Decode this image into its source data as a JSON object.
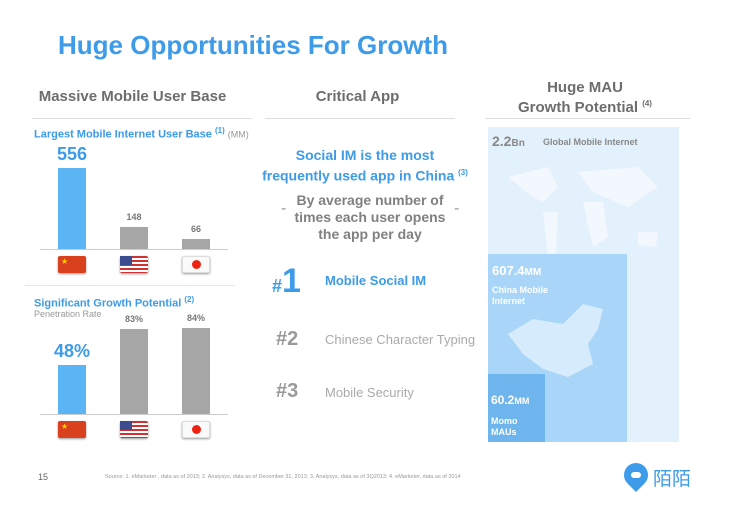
{
  "title": "Huge Opportunities For Growth",
  "columns": {
    "left": "Massive Mobile User Base",
    "middle": "Critical App",
    "right_line1": "Huge MAU",
    "right_line2": "Growth Potential",
    "right_note": "(4)"
  },
  "chart_data": [
    {
      "type": "bar",
      "title": "Largest Mobile Internet User Base",
      "note": "(1)",
      "unit": "(MM)",
      "categories": [
        "China",
        "US",
        "Japan"
      ],
      "values": [
        556,
        148,
        66
      ],
      "labels": [
        "556",
        "148",
        "66"
      ]
    },
    {
      "type": "bar",
      "title": "Significant Growth Potential",
      "note": "(2)",
      "ylabel": "Penetration Rate",
      "categories": [
        "China",
        "US",
        "Japan"
      ],
      "values": [
        48,
        83,
        84
      ],
      "labels": [
        "48%",
        "83%",
        "84%"
      ]
    }
  ],
  "middle": {
    "headline1": "Social IM is the most",
    "headline2": "frequently used app in China",
    "headline_note": "(3)",
    "metric1": "By average number of",
    "metric2": "times each user opens",
    "metric3": "the app per day",
    "dash": "-",
    "ranks": [
      {
        "hash": "#",
        "num": "1",
        "label": "Mobile Social IM"
      },
      {
        "hash": "#",
        "num": "2",
        "label": "Chinese Character Typing"
      },
      {
        "hash": "#",
        "num": "3",
        "label": "Mobile Security"
      }
    ]
  },
  "mau": {
    "global_value": "2.2",
    "global_unit": "Bn",
    "global_label": "Global Mobile Internet",
    "china_value": "607.4",
    "china_unit": "MM",
    "china_label1": "China Mobile",
    "china_label2": "Internet",
    "momo_value": "60.2",
    "momo_unit": "MM",
    "momo_label1": "Momo",
    "momo_label2": "MAUs"
  },
  "footer": {
    "page": "15",
    "source": "Source: 1. eMarketer , data as of 2013; 2. Analysys, data as of December 31, 2013; 3. Analysys, data as of 3Q2013; 4. eMarketer, data as of 2014",
    "logo_text": "陌陌"
  },
  "colors": {
    "blue": "#5bb5f5",
    "gray": "#a6a6a6",
    "accent": "#3d9be9"
  }
}
